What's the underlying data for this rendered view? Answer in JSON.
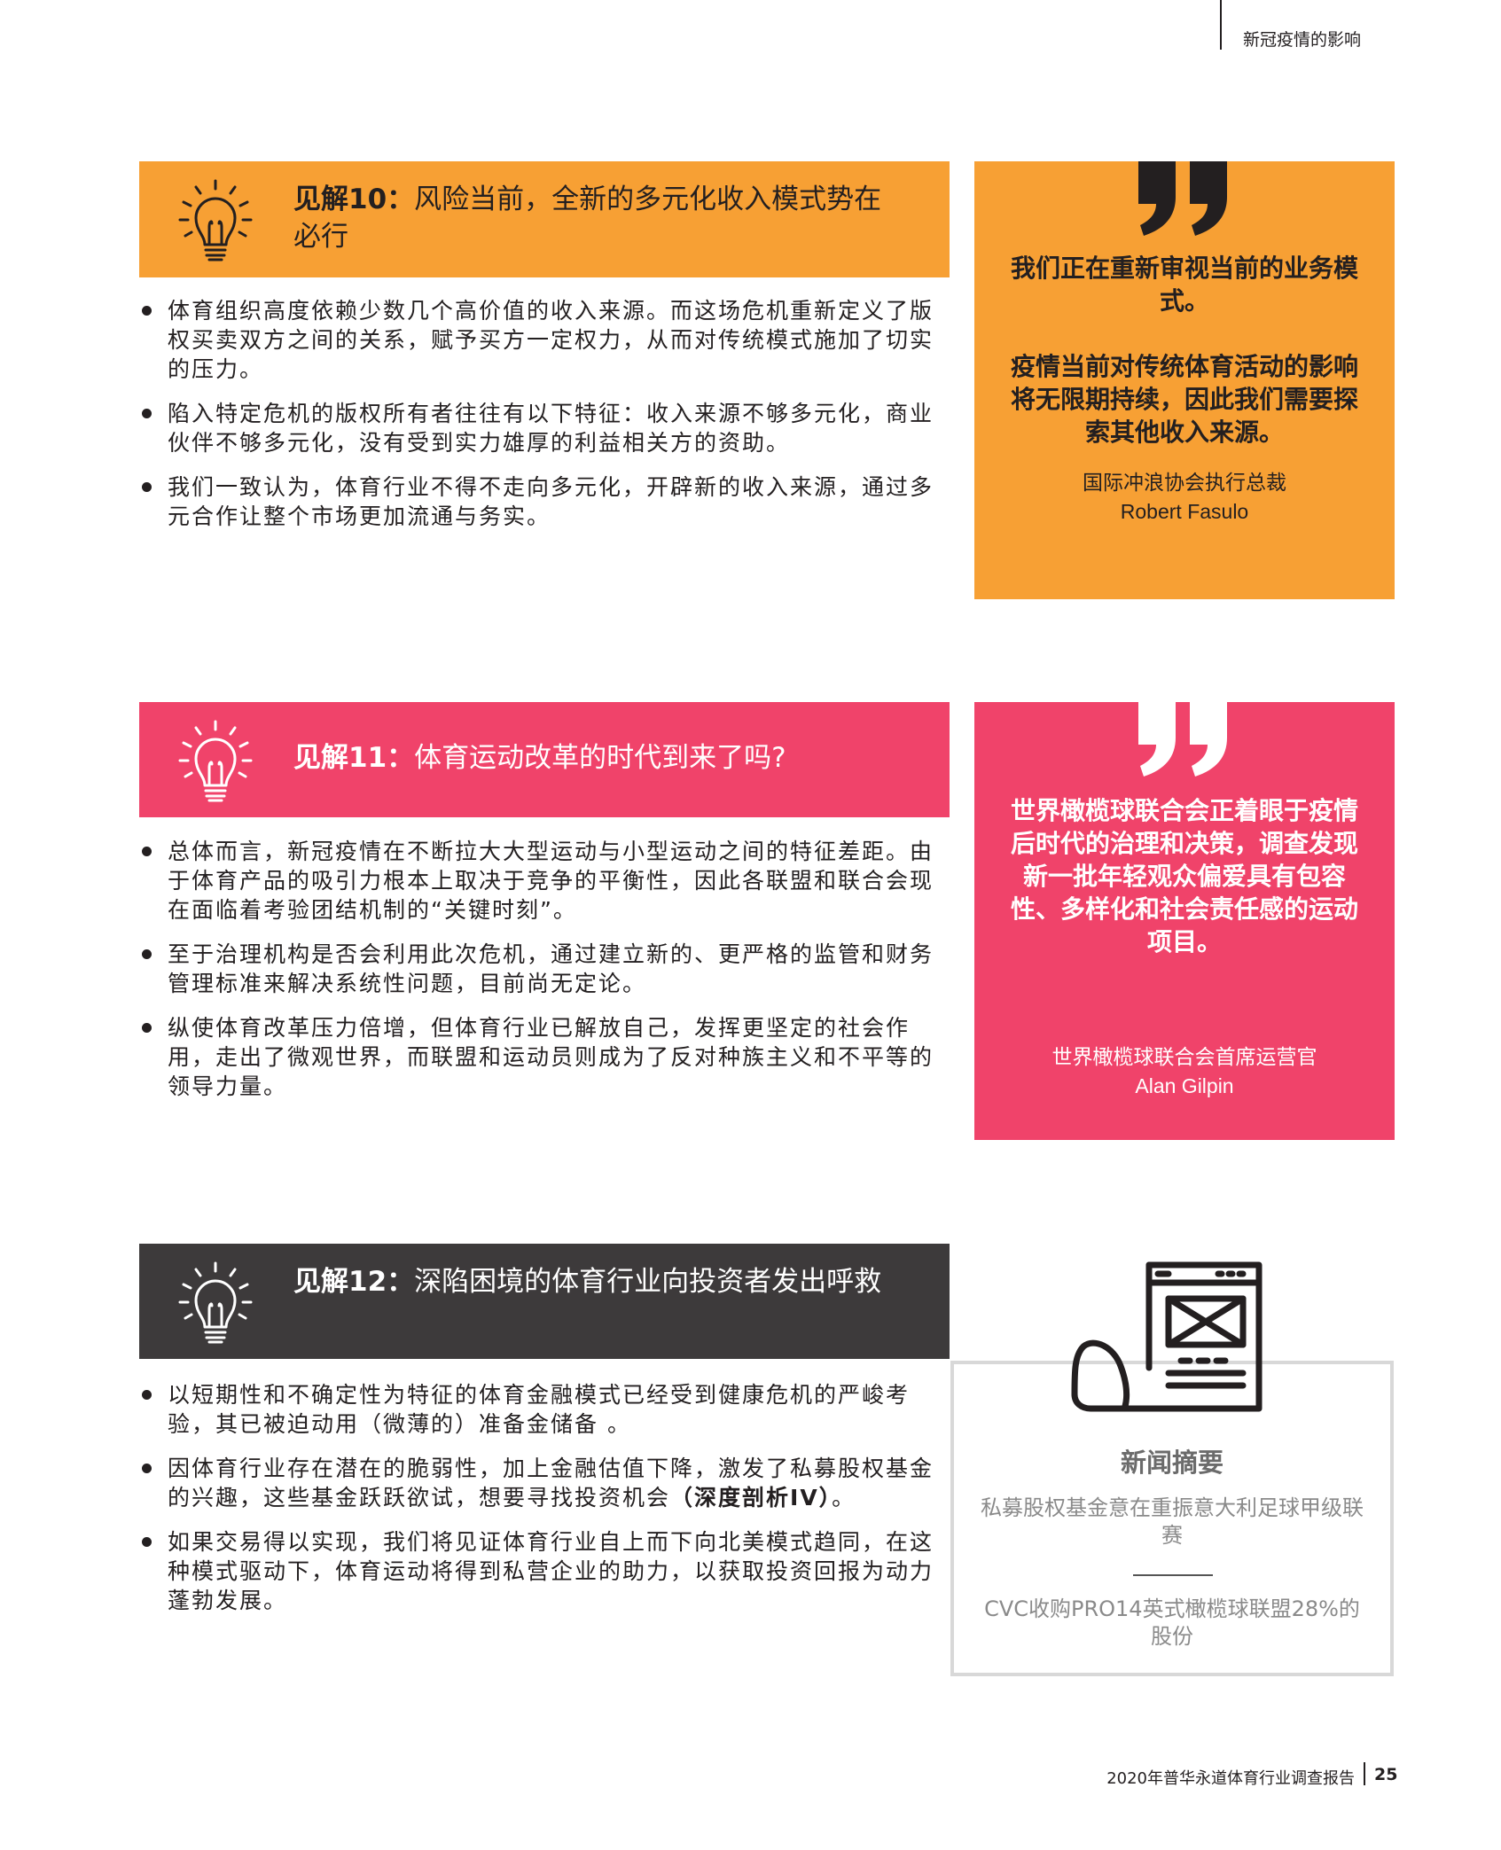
{
  "header": {
    "section_title": "新冠疫情的影响"
  },
  "insight10": {
    "label": "见解10：",
    "title": "风险当前，全新的多元化收入模式势在必行",
    "bullets": [
      "体育组织高度依赖少数几个高价值的收入来源。而这场危机重新定义了版权买卖双方之间的关系，赋予买方一定权力，从而对传统模式施加了切实的压力。",
      "陷入特定危机的版权所有者往往有以下特征：收入来源不够多元化，商业伙伴不够多元化，没有受到实力雄厚的利益相关方的资助。",
      "我们一致认为，体育行业不得不走向多元化，开辟新的收入来源，通过多元合作让整个市场更加流通与务实。"
    ]
  },
  "quote1": {
    "line1": "我们正在重新审视当前的业务模式。",
    "line2": "疫情当前对传统体育活动的影响将无限期持续，因此我们需要探索其他收入来源。",
    "role": "国际冲浪协会执行总裁",
    "name": "Robert Fasulo"
  },
  "insight11": {
    "label": "见解11：",
    "title": "体育运动改革的时代到来了吗?",
    "bullets": [
      "总体而言，新冠疫情在不断拉大大型运动与小型运动之间的特征差距。由于体育产品的吸引力根本上取决于竞争的平衡性，因此各联盟和联合会现在面临着考验团结机制的“关键时刻”。",
      "至于治理机构是否会利用此次危机，通过建立新的、更严格的监管和财务管理标准来解决系统性问题，目前尚无定论。",
      "纵使体育改革压力倍增，但体育行业已解放自己，发挥更坚定的社会作用，走出了微观世界，而联盟和运动员则成为了反对种族主义和不平等的领导力量。"
    ]
  },
  "quote2": {
    "text": "世界橄榄球联合会正着眼于疫情后时代的治理和决策，调查发现新一批年轻观众偏爱具有包容性、多样化和社会责任感的运动项目。",
    "role": "世界橄榄球联合会首席运营官",
    "name": "Alan Gilpin"
  },
  "insight12": {
    "label": "见解12：",
    "title": "深陷困境的体育行业向投资者发出呼救",
    "bullets": [
      "以短期性和不确定性为特征的体育金融模式已经受到健康危机的严峻考验，其已被迫动用（微薄的）准备金储备 。",
      "因体育行业存在潜在的脆弱性，加上金融估值下降，激发了私募股权基金的兴趣，这些基金跃跃欲试，想要寻找投资机会",
      "如果交易得以实现，我们将见证体育行业自上而下向北美模式趋同，在这种模式驱动下，体育运动将得到私营企业的助力，以获取投资回报为动力蓬勃发展。"
    ],
    "bullet2_bold": "（深度剖析IV）",
    "bullet2_end": "。"
  },
  "news": {
    "title": "新闻摘要",
    "items": [
      "私募股权基金意在重振意大利足球甲级联赛",
      "CVC收购PRO14英式橄榄球联盟28%的股份"
    ]
  },
  "footer": {
    "report": "2020年普华永道体育行业调查报告",
    "page": "25"
  },
  "colors": {
    "orange": "#f7a034",
    "pink": "#f0436a",
    "dark": "#3d3a3b",
    "text": "#231f20"
  }
}
